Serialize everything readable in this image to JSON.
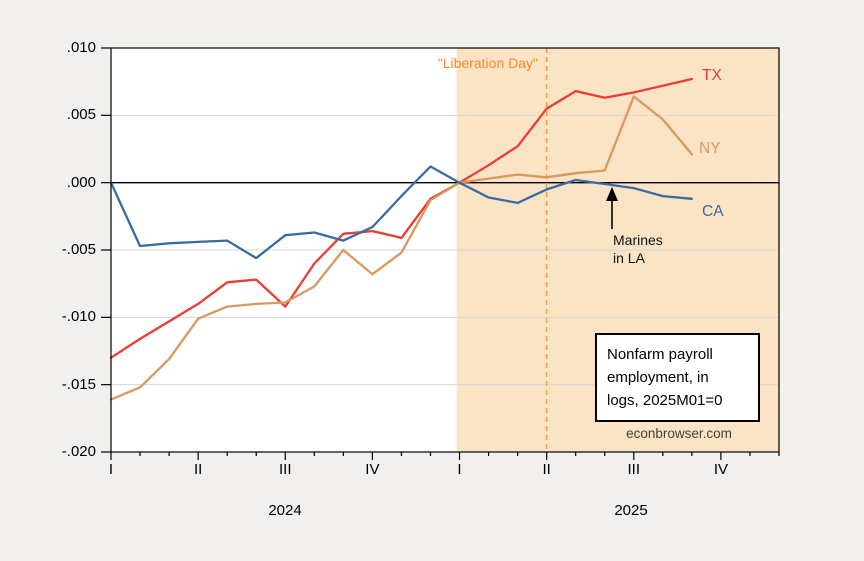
{
  "chart_data": {
    "type": "line",
    "note_box_lines": [
      "Nonfarm payroll",
      "employment, in",
      "logs, 2025M01=0"
    ],
    "watermark": "econbrowser.com",
    "x": [
      "2024M01",
      "2024M02",
      "2024M03",
      "2024M04",
      "2024M05",
      "2024M06",
      "2024M07",
      "2024M08",
      "2024M09",
      "2024M10",
      "2024M11",
      "2024M12",
      "2025M01",
      "2025M02",
      "2025M03",
      "2025M04",
      "2025M05",
      "2025M06",
      "2025M07",
      "2025M08",
      "2025M09"
    ],
    "x_axis": {
      "total_months": 24,
      "quarter_tick_indices": [
        0,
        3,
        6,
        9,
        12,
        15,
        18,
        21
      ],
      "quarter_labels": [
        "I",
        "II",
        "III",
        "IV",
        "I",
        "II",
        "III",
        "IV"
      ],
      "year_labels": [
        "2024",
        "2025"
      ]
    },
    "y_axis": {
      "min": -0.02,
      "max": 0.01,
      "step": 0.005,
      "tick_labels": [
        ".010",
        ".005",
        ".000",
        "-.005",
        "-.010",
        "-.015",
        "-.020"
      ],
      "grid": true
    },
    "series": [
      {
        "name": "TX",
        "color": "#ee3b33",
        "values": [
          -0.013,
          -0.0116,
          -0.0103,
          -0.009,
          -0.0074,
          -0.0072,
          -0.0092,
          -0.006,
          -0.0038,
          -0.0036,
          -0.0041,
          -0.0012,
          0.0,
          0.0013,
          0.0027,
          0.0055,
          0.0068,
          0.0063,
          0.0067,
          0.0072,
          0.0077
        ]
      },
      {
        "name": "NY",
        "color": "#d8995d",
        "values": [
          -0.0161,
          -0.0152,
          -0.0131,
          -0.0101,
          -0.0092,
          -0.009,
          -0.0089,
          -0.0077,
          -0.005,
          -0.0068,
          -0.0052,
          -0.0013,
          0.0,
          0.0003,
          0.0006,
          0.0004,
          0.0007,
          0.0009,
          0.0064,
          0.0047,
          0.0021
        ]
      },
      {
        "name": "CA",
        "color": "#3d6aa1",
        "values": [
          0.0,
          -0.0047,
          -0.0045,
          -0.0044,
          -0.0043,
          -0.0056,
          -0.0039,
          -0.0037,
          -0.0043,
          -0.0033,
          -0.001,
          0.0012,
          0.0,
          -0.0011,
          -0.0015,
          -0.0005,
          0.0002,
          -0.0001,
          -0.0004,
          -0.001,
          -0.0012
        ]
      }
    ],
    "shaded_region": {
      "start": "2025M01",
      "start_index": 12,
      "color": "#fbe3c6"
    },
    "vline": {
      "at": "2025M04",
      "index": 15,
      "label": "\"Liberation Day\"",
      "color": "#ef8c28",
      "style": "dashed"
    },
    "annotations": [
      {
        "lines": [
          "Marines",
          "in LA"
        ],
        "arrow_at": "2025M06",
        "arrow_x_index": 17
      }
    ],
    "zero_line": {
      "value": 0,
      "color": "#000000"
    }
  }
}
